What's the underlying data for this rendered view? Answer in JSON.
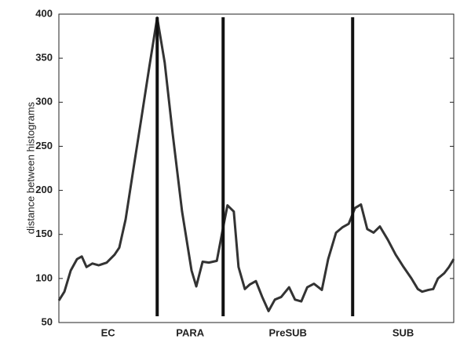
{
  "chart_data": {
    "type": "line",
    "y_label": "distance between histograms",
    "ylim": [
      50,
      400
    ],
    "yticks": [
      50,
      100,
      150,
      200,
      250,
      300,
      350,
      400
    ],
    "xlim": [
      0,
      100
    ],
    "x": [
      0,
      1.4,
      3,
      4.6,
      5.8,
      7,
      8.5,
      10.1,
      12.1,
      14.1,
      15.3,
      16.9,
      18.9,
      20.9,
      22.9,
      24.9,
      26.8,
      28.8,
      31.2,
      33.6,
      34.8,
      36.4,
      38,
      40,
      41.6,
      42.7,
      44.3,
      45.5,
      47.1,
      48.3,
      49.9,
      51.5,
      53.1,
      54.7,
      56.3,
      58.3,
      59.8,
      61.4,
      62.9,
      64.6,
      66.6,
      68.2,
      70.2,
      71.8,
      73.4,
      75,
      76.5,
      78.1,
      79.7,
      81.3,
      83.3,
      85.3,
      87.3,
      89.3,
      90.9,
      92,
      93.6,
      94.8,
      96,
      97.6,
      98.8,
      100
    ],
    "series": [
      {
        "color": "#333333",
        "values": [
          75,
          85,
          109,
          122,
          125,
          113,
          117,
          115,
          118,
          127,
          135,
          167,
          225,
          282,
          340,
          396,
          345,
          265,
          176,
          109,
          91,
          119,
          118,
          120,
          158,
          183,
          176,
          113,
          88,
          93,
          97,
          79,
          63,
          76,
          79,
          90,
          76,
          74,
          90,
          94,
          87,
          122,
          152,
          158,
          162,
          180,
          184,
          156,
          152,
          159,
          144,
          127,
          113,
          100,
          88,
          85,
          87,
          88,
          100,
          106,
          113,
          122
        ]
      }
    ],
    "boundaries": [
      24.9,
      41.6,
      74.4
    ],
    "boundary_color": "#111111",
    "regions": [
      "EC",
      "PARA",
      "PreSUB",
      "SUB"
    ]
  }
}
